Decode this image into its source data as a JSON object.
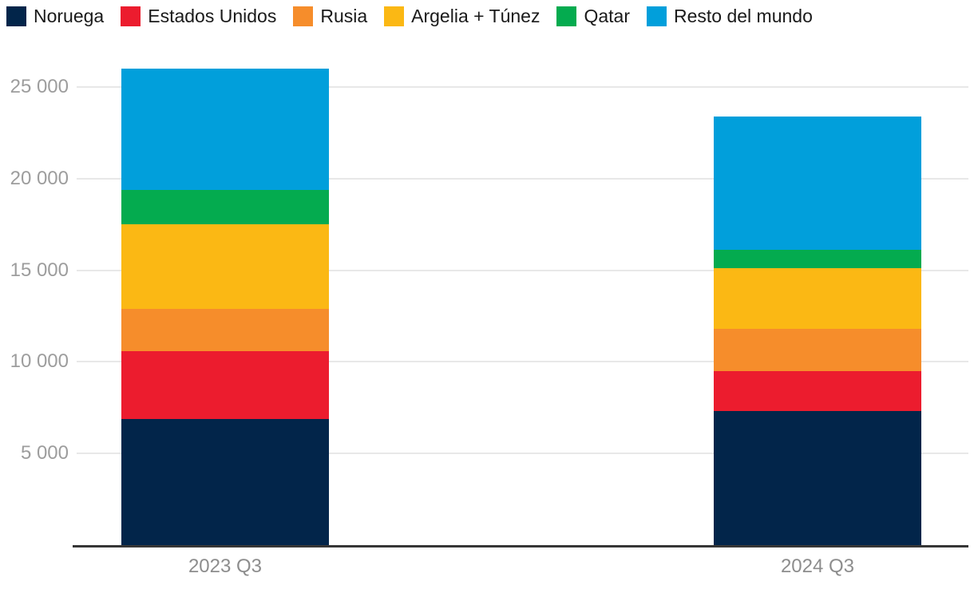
{
  "chart_data": {
    "type": "bar",
    "stacked": true,
    "categories": [
      "2023 Q3",
      "2024 Q3"
    ],
    "series": [
      {
        "name": "Noruega",
        "color": "#02254A",
        "values": [
          6900,
          7300
        ]
      },
      {
        "name": "Estados Unidos",
        "color": "#EC1C2E",
        "values": [
          3700,
          2200
        ]
      },
      {
        "name": "Rusia",
        "color": "#F68D2B",
        "values": [
          2300,
          2300
        ]
      },
      {
        "name": "Argelia + Túnez",
        "color": "#FBB814",
        "values": [
          4600,
          3300
        ]
      },
      {
        "name": "Qatar",
        "color": "#04AB4F",
        "values": [
          1900,
          1000
        ]
      },
      {
        "name": "Resto del mundo",
        "color": "#019FDB",
        "values": [
          6600,
          7300
        ]
      }
    ],
    "totals": [
      26000,
      23400
    ],
    "y_axis": {
      "min": 0,
      "max": 26000,
      "ticks": [
        {
          "value": 5000,
          "label": "5 000"
        },
        {
          "value": 10000,
          "label": "10 000"
        },
        {
          "value": 15000,
          "label": "15 000"
        },
        {
          "value": 20000,
          "label": "20 000"
        },
        {
          "value": 25000,
          "label": "25 000"
        }
      ]
    },
    "grid": true,
    "legend_position": "top",
    "colors": {
      "background": "#FFFFFF",
      "grid_line": "#E8E8E8",
      "axis_line": "#363636",
      "y_tick_label": "#9D9D9D",
      "x_tick_label": "#8D8D8D",
      "legend_text": "#1A1A1A"
    }
  }
}
